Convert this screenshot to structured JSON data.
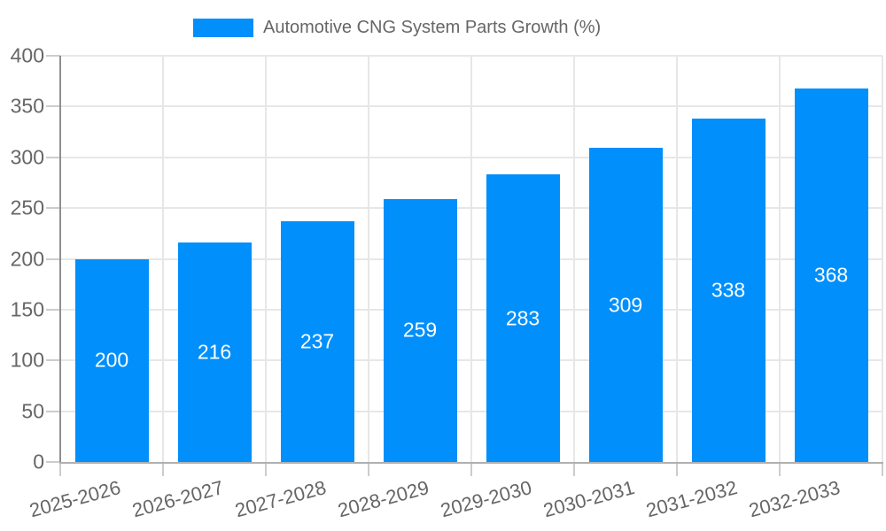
{
  "chart_data": {
    "type": "bar",
    "title": "",
    "legend_label": "Automotive CNG System Parts Growth (%)",
    "categories": [
      "2025-2026",
      "2026-2027",
      "2027-2028",
      "2028-2029",
      "2029-2030",
      "2030-2031",
      "2031-2032",
      "2032-2033"
    ],
    "values": [
      200,
      216,
      237,
      259,
      283,
      309,
      338,
      368
    ],
    "xlabel": "",
    "ylabel": "",
    "ylim": [
      0,
      400
    ],
    "yticks": [
      0,
      50,
      100,
      150,
      200,
      250,
      300,
      350,
      400
    ],
    "grid": "on",
    "legend_position": "top",
    "value_labels": "inside-center",
    "colors": {
      "bar": "#008FFB",
      "grid": "#E7E7E7",
      "y_axis": "#8F8F8F",
      "x_axis": "#B0B0B0",
      "tick": "#CCCCCC",
      "axis_text": "#666666",
      "value_text": "#FFFFFF",
      "background": "#FFFFFF"
    }
  }
}
